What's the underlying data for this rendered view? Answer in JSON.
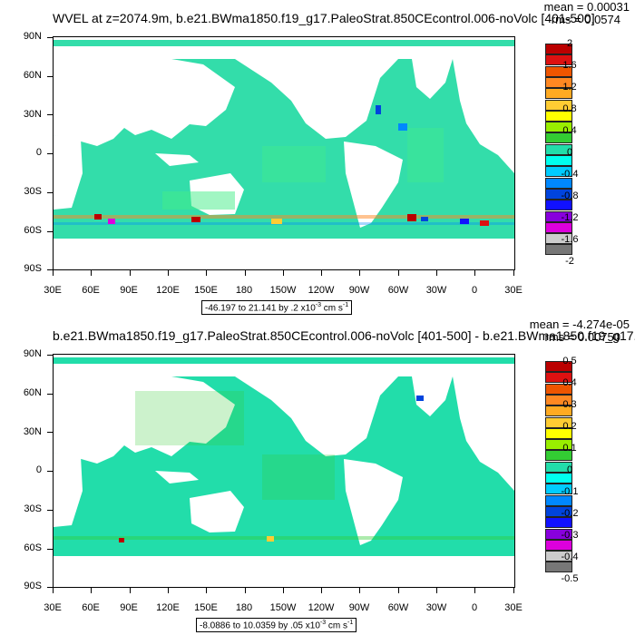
{
  "top": {
    "title": "WVEL at z=2074.9m, b.e21.BWma1850.f19_g17.PaleoStrat.850CEcontrol.006-noVolc [401-500]",
    "mean": "mean = 0.00031",
    "rms": "rms = 0.0574",
    "range_text": "-46.197 to 21.141 by .2 x10",
    "range_exp": "-3",
    "range_unit": " cm s",
    "range_unit_exp": "-1",
    "colorbar_labels": [
      "2",
      "1.6",
      "1.2",
      "0.8",
      "0.4",
      "0",
      "-0.4",
      "-0.8",
      "-1.2",
      "-1.6",
      "-2"
    ]
  },
  "bottom": {
    "title": "b.e21.BWma1850.f19_g17.PaleoStrat.850CEcontrol.006-noVolc [401-500] - b.e21.BWma1850.f19_g17.",
    "mean": "mean = -4.274e-05",
    "rms": "rms = 0.00750",
    "range_text": "-8.0886 to 10.0359 by .05 x10",
    "range_exp": "-3",
    "range_unit": " cm s",
    "range_unit_exp": "-1",
    "colorbar_labels": [
      "0.5",
      "0.4",
      "0.3",
      "0.2",
      "0.1",
      "0",
      "-0.1",
      "-0.2",
      "-0.3",
      "-0.4",
      "-0.5"
    ]
  },
  "lat_labels": [
    "90N",
    "60N",
    "30N",
    "0",
    "30S",
    "60S",
    "90S"
  ],
  "lon_labels": [
    "30E",
    "60E",
    "90E",
    "120E",
    "150E",
    "180",
    "150W",
    "120W",
    "90W",
    "60W",
    "30W",
    "0",
    "30E"
  ],
  "colors": {
    "ocean_base": "#33ddaa",
    "ocean_light": "#44ee88",
    "land": "#ffffff",
    "colorbar": [
      "#bb0000",
      "#dd1111",
      "#ee5500",
      "#ff8822",
      "#ffaa22",
      "#ffcc33",
      "#ffff00",
      "#99ee00",
      "#33cc33",
      "#22ddaa",
      "#00ffee",
      "#00ccff",
      "#0088ff",
      "#0044dd",
      "#1111ff",
      "#8800dd",
      "#dd00dd",
      "#cccccc",
      "#777777"
    ]
  }
}
